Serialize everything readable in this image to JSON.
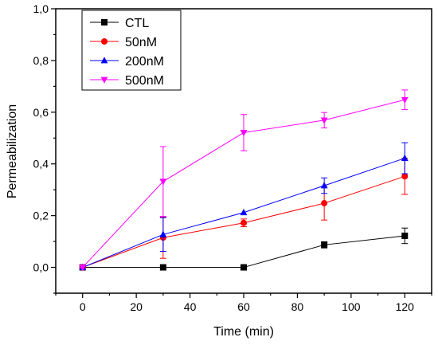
{
  "chart_data": {
    "type": "line",
    "title": "",
    "xlabel": "Time (min)",
    "ylabel": "Permeabilization",
    "xlim": [
      -10,
      130
    ],
    "ylim": [
      -0.1,
      1.0
    ],
    "x": [
      0,
      30,
      60,
      90,
      120
    ],
    "xticks": [
      0,
      20,
      40,
      60,
      80,
      100,
      120
    ],
    "xtick_labels": [
      "0",
      "20",
      "40",
      "60",
      "80",
      "100",
      "120"
    ],
    "yticks": [
      0.0,
      0.2,
      0.4,
      0.6,
      0.8,
      1.0
    ],
    "ytick_labels": [
      "0,0",
      "0,2",
      "0,4",
      "0,6",
      "0,8",
      "1,0"
    ],
    "grid": false,
    "legend_position": "top-left",
    "series": [
      {
        "name": "CTL",
        "color": "#000000",
        "marker": "square",
        "values": [
          0.0,
          0.0,
          0.0,
          0.087,
          0.122
        ],
        "errors": [
          0.0,
          0.0,
          0.0,
          0.012,
          0.03
        ]
      },
      {
        "name": "50nM",
        "color": "#ff0000",
        "marker": "circle",
        "values": [
          0.0,
          0.115,
          0.172,
          0.248,
          0.352
        ],
        "errors": [
          0.0,
          0.08,
          0.015,
          0.065,
          0.07
        ]
      },
      {
        "name": "200nM",
        "color": "#0000ff",
        "marker": "triangle-up",
        "values": [
          0.0,
          0.127,
          0.212,
          0.316,
          0.422
        ],
        "errors": [
          0.0,
          0.065,
          0.0,
          0.03,
          0.06
        ]
      },
      {
        "name": "500nM",
        "color": "#ff00ff",
        "marker": "triangle-down",
        "values": [
          0.0,
          0.332,
          0.521,
          0.569,
          0.648
        ],
        "errors": [
          0.0,
          0.135,
          0.07,
          0.03,
          0.038
        ]
      }
    ]
  }
}
